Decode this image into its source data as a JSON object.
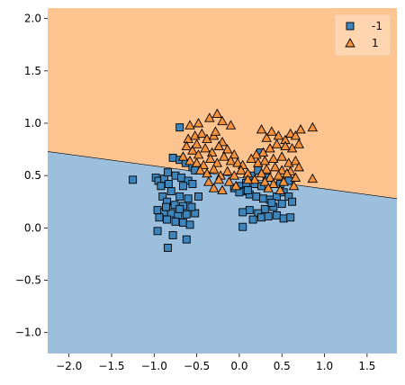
{
  "chart_data": {
    "type": "scatter",
    "title": "",
    "xlabel": "",
    "ylabel": "",
    "xlim": [
      -2.25,
      1.85
    ],
    "ylim": [
      -1.2,
      2.1
    ],
    "xticks": [
      -2.0,
      -1.5,
      -1.0,
      -0.5,
      0.0,
      0.5,
      1.0,
      1.5
    ],
    "yticks": [
      -1.0,
      -0.5,
      0.0,
      0.5,
      1.0,
      1.5,
      2.0
    ],
    "xtick_labels": [
      "−2.0",
      "−1.5",
      "−1.0",
      "−0.5",
      "0.0",
      "0.5",
      "1.0",
      "1.5"
    ],
    "ytick_labels": [
      "−1.0",
      "−0.5",
      "0.0",
      "0.5",
      "1.0",
      "1.5",
      "2.0"
    ],
    "grid": false,
    "legend_position": "top-right",
    "decision_boundary": {
      "x": [
        -2.25,
        1.85
      ],
      "y": [
        0.73,
        0.28
      ],
      "region_above": "1",
      "region_below": "-1",
      "color_above": "#ffc490",
      "color_below": "#9bbfdd"
    },
    "series": [
      {
        "name": "-1",
        "marker": "square",
        "color": "#3d85ba",
        "points": [
          [
            -1.25,
            0.46
          ],
          [
            -0.98,
            0.48
          ],
          [
            -0.95,
            0.45
          ],
          [
            -0.92,
            0.4
          ],
          [
            -0.88,
            0.47
          ],
          [
            -0.83,
            0.42
          ],
          [
            -0.78,
            0.67
          ],
          [
            -0.7,
            0.96
          ],
          [
            -0.7,
            0.65
          ],
          [
            -0.63,
            0.62
          ],
          [
            -0.55,
            0.58
          ],
          [
            -0.52,
            0.55
          ],
          [
            -0.84,
            0.53
          ],
          [
            -0.75,
            0.5
          ],
          [
            -0.68,
            0.48
          ],
          [
            -0.6,
            0.45
          ],
          [
            -0.55,
            0.42
          ],
          [
            -0.66,
            0.4
          ],
          [
            -0.8,
            0.35
          ],
          [
            -0.9,
            0.3
          ],
          [
            -0.7,
            0.3
          ],
          [
            -0.6,
            0.28
          ],
          [
            -0.48,
            0.3
          ],
          [
            -0.85,
            0.25
          ],
          [
            -0.76,
            0.22
          ],
          [
            -0.66,
            0.21
          ],
          [
            -0.96,
            0.17
          ],
          [
            -0.88,
            0.15
          ],
          [
            -0.8,
            0.14
          ],
          [
            -0.72,
            0.12
          ],
          [
            -0.62,
            0.13
          ],
          [
            -0.52,
            0.14
          ],
          [
            -0.94,
            0.1
          ],
          [
            -0.85,
            0.08
          ],
          [
            -0.75,
            0.06
          ],
          [
            -0.66,
            0.05
          ],
          [
            -0.58,
            0.03
          ],
          [
            -0.96,
            -0.03
          ],
          [
            -0.78,
            -0.07
          ],
          [
            -0.62,
            -0.11
          ],
          [
            -0.84,
            -0.19
          ],
          [
            -0.7,
            0.18
          ],
          [
            -0.86,
            0.2
          ],
          [
            -0.56,
            0.2
          ],
          [
            -0.06,
            0.38
          ],
          [
            0.02,
            0.4
          ],
          [
            0.08,
            0.43
          ],
          [
            0.15,
            0.5
          ],
          [
            0.22,
            0.55
          ],
          [
            0.25,
            0.72
          ],
          [
            0.06,
            0.35
          ],
          [
            0.12,
            0.32
          ],
          [
            0.2,
            0.3
          ],
          [
            0.28,
            0.28
          ],
          [
            0.36,
            0.27
          ],
          [
            0.44,
            0.3
          ],
          [
            0.52,
            0.34
          ],
          [
            0.58,
            0.3
          ],
          [
            0.62,
            0.25
          ],
          [
            0.5,
            0.23
          ],
          [
            0.4,
            0.2
          ],
          [
            0.3,
            0.18
          ],
          [
            0.22,
            0.14
          ],
          [
            0.12,
            0.17
          ],
          [
            0.04,
            0.15
          ],
          [
            0.16,
            0.08
          ],
          [
            0.26,
            0.1
          ],
          [
            0.34,
            0.11
          ],
          [
            0.44,
            0.12
          ],
          [
            0.52,
            0.09
          ],
          [
            0.6,
            0.1
          ],
          [
            0.38,
            0.24
          ],
          [
            0.48,
            0.42
          ],
          [
            0.58,
            0.45
          ],
          [
            0.32,
            0.48
          ],
          [
            0.18,
            0.42
          ],
          [
            0.1,
            0.36
          ],
          [
            0.0,
            0.34
          ],
          [
            0.04,
            0.01
          ],
          [
            0.26,
            0.4
          ]
        ]
      },
      {
        "name": "1",
        "marker": "triangle",
        "color": "#f6923c",
        "points": [
          [
            -0.58,
            0.98
          ],
          [
            -0.48,
            1.0
          ],
          [
            -0.35,
            1.05
          ],
          [
            -0.26,
            1.09
          ],
          [
            -0.2,
            1.02
          ],
          [
            -0.1,
            0.98
          ],
          [
            -0.6,
            0.85
          ],
          [
            -0.52,
            0.88
          ],
          [
            -0.44,
            0.9
          ],
          [
            -0.38,
            0.85
          ],
          [
            -0.3,
            0.88
          ],
          [
            -0.2,
            0.82
          ],
          [
            -0.62,
            0.78
          ],
          [
            -0.55,
            0.74
          ],
          [
            -0.48,
            0.7
          ],
          [
            -0.4,
            0.76
          ],
          [
            -0.32,
            0.72
          ],
          [
            -0.24,
            0.78
          ],
          [
            -0.14,
            0.75
          ],
          [
            -0.06,
            0.7
          ],
          [
            -0.66,
            0.68
          ],
          [
            -0.58,
            0.64
          ],
          [
            -0.5,
            0.62
          ],
          [
            -0.42,
            0.6
          ],
          [
            -0.34,
            0.66
          ],
          [
            -0.26,
            0.62
          ],
          [
            -0.18,
            0.68
          ],
          [
            -0.1,
            0.64
          ],
          [
            -0.02,
            0.62
          ],
          [
            0.04,
            0.6
          ],
          [
            -0.46,
            0.55
          ],
          [
            -0.38,
            0.52
          ],
          [
            -0.3,
            0.56
          ],
          [
            -0.22,
            0.5
          ],
          [
            -0.14,
            0.54
          ],
          [
            -0.06,
            0.5
          ],
          [
            0.02,
            0.55
          ],
          [
            0.1,
            0.52
          ],
          [
            -0.36,
            0.44
          ],
          [
            -0.24,
            0.46
          ],
          [
            -0.12,
            0.44
          ],
          [
            -0.04,
            0.4
          ],
          [
            -0.3,
            0.38
          ],
          [
            -0.2,
            0.36
          ],
          [
            -0.5,
            0.8
          ],
          [
            -0.28,
            0.92
          ],
          [
            0.26,
            0.94
          ],
          [
            0.32,
            0.86
          ],
          [
            0.38,
            0.92
          ],
          [
            0.46,
            0.88
          ],
          [
            0.54,
            0.84
          ],
          [
            0.6,
            0.9
          ],
          [
            0.66,
            0.88
          ],
          [
            0.72,
            0.94
          ],
          [
            0.86,
            0.96
          ],
          [
            0.7,
            0.8
          ],
          [
            0.62,
            0.76
          ],
          [
            0.54,
            0.78
          ],
          [
            0.44,
            0.8
          ],
          [
            0.36,
            0.76
          ],
          [
            0.28,
            0.72
          ],
          [
            0.2,
            0.7
          ],
          [
            0.14,
            0.66
          ],
          [
            0.22,
            0.62
          ],
          [
            0.3,
            0.64
          ],
          [
            0.4,
            0.66
          ],
          [
            0.5,
            0.68
          ],
          [
            0.58,
            0.62
          ],
          [
            0.66,
            0.64
          ],
          [
            0.32,
            0.56
          ],
          [
            0.42,
            0.58
          ],
          [
            0.5,
            0.55
          ],
          [
            0.6,
            0.54
          ],
          [
            0.7,
            0.58
          ],
          [
            0.26,
            0.52
          ],
          [
            0.36,
            0.48
          ],
          [
            0.46,
            0.5
          ],
          [
            0.56,
            0.52
          ],
          [
            0.66,
            0.48
          ],
          [
            0.3,
            0.44
          ],
          [
            0.4,
            0.42
          ],
          [
            0.52,
            0.44
          ],
          [
            0.64,
            0.4
          ],
          [
            0.86,
            0.47
          ],
          [
            0.18,
            0.46
          ],
          [
            0.34,
            0.38
          ],
          [
            0.48,
            0.36
          ],
          [
            0.1,
            0.46
          ]
        ]
      }
    ]
  }
}
